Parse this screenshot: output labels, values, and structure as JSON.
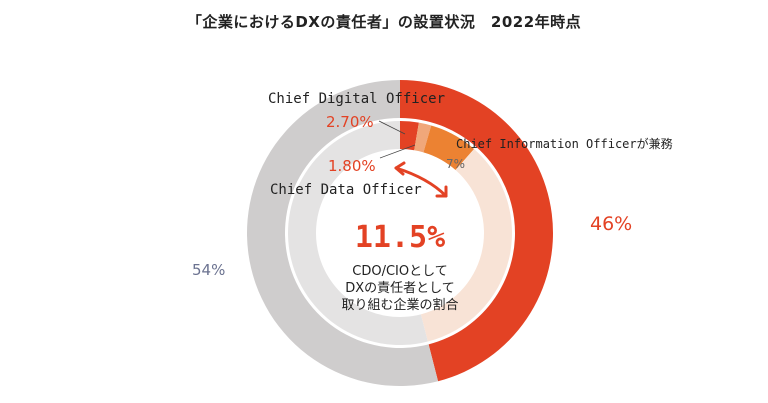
{
  "chart_data": {
    "type": "pie",
    "title": "「企業におけるDXの責任者」の設置状況　2022年時点",
    "rings": [
      {
        "level": "outer",
        "slices": [
          {
            "label": "46%",
            "value": 46,
            "color": "#e34224"
          },
          {
            "label": "54%",
            "value": 54,
            "color": "#cfcdcd"
          }
        ]
      },
      {
        "level": "inner",
        "slices": [
          {
            "name": "Chief Digital Officer",
            "label": "2.70%",
            "value": 2.7,
            "color": "#e34224"
          },
          {
            "name": "Chief Data Officer",
            "label": "1.80%",
            "value": 1.8,
            "color": "#f0a77a"
          },
          {
            "name": "Chief Information Officerが兼務",
            "label": "7%",
            "value": 7,
            "color": "#ec8232"
          },
          {
            "value": 34.5,
            "color": "#f8e3d6"
          },
          {
            "value": 54,
            "color": "#e4e3e3"
          }
        ]
      }
    ],
    "center": {
      "value": "11.5%",
      "lines": [
        "CDO/CIOとして",
        "DXの責任者として",
        "取り組む企業の割合"
      ]
    },
    "colors": {
      "accent": "#e34224",
      "gray_label": "#6b7290"
    }
  }
}
